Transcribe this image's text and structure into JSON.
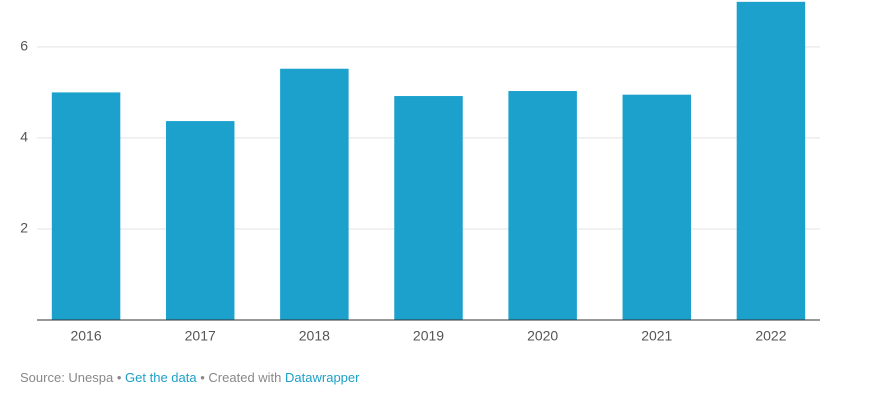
{
  "chart_data": {
    "type": "bar",
    "categories": [
      "2016",
      "2017",
      "2018",
      "2019",
      "2020",
      "2021",
      "2022"
    ],
    "values": [
      5.0,
      4.37,
      5.52,
      4.92,
      5.03,
      4.95,
      6.99
    ],
    "color": "#1ba1cc",
    "ylim": [
      0,
      7.03
    ],
    "yticks": [
      2,
      4,
      6
    ],
    "grid": true
  },
  "footer": {
    "source": "Source: Unespa",
    "separator": "•",
    "get_data": "Get the data",
    "created_with": "Created with",
    "tool": "Datawrapper"
  }
}
